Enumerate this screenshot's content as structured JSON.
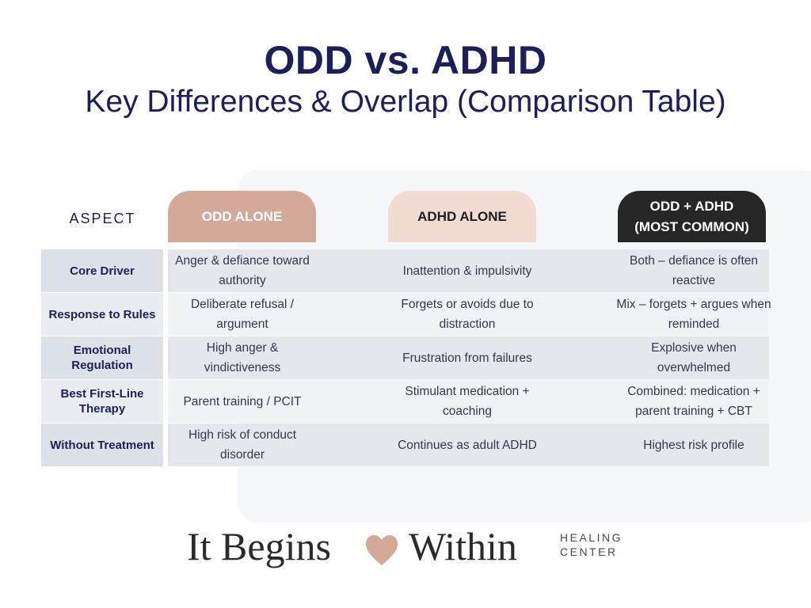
{
  "header": {
    "title": "ODD vs. ADHD",
    "subtitle": "Key Differences & Overlap (Comparison Table)"
  },
  "table": {
    "aspect_label": "ASPECT",
    "columns": [
      "ODD ALONE",
      "ADHD ALONE",
      "ODD + ADHD\n(MOST COMMON)"
    ],
    "rows": [
      {
        "aspect": "Core Driver",
        "odd": "Anger & defiance toward authority",
        "adhd": "Inattention & impulsivity",
        "both": "Both – defiance is often reactive"
      },
      {
        "aspect": "Response to Rules",
        "odd": "Deliberate refusal / argument",
        "adhd": "Forgets or avoids due to distraction",
        "both": "Mix – forgets + argues when reminded"
      },
      {
        "aspect": "Emotional Regulation",
        "odd": "High anger & vindictiveness",
        "adhd": "Frustration from failures",
        "both": "Explosive when overwhelmed"
      },
      {
        "aspect": "Best First-Line Therapy",
        "odd": "Parent training / PCIT",
        "adhd": "Stimulant medication + coaching",
        "both": "Combined: medication + parent training + CBT"
      },
      {
        "aspect": "Without Treatment",
        "odd": "High risk of conduct disorder",
        "adhd": "Continues as adult ADHD",
        "both": "Highest risk profile"
      }
    ]
  },
  "footer": {
    "logo_left": "It Begins",
    "logo_right": "Within",
    "logo_sub": "HEALING\nCENTER",
    "heart_icon": "heart-icon",
    "heart_color": "#d4a99a"
  },
  "colors": {
    "navy": "#1c1f5a",
    "odd_header": "#d4a99a",
    "adhd_header": "#f2dbd0",
    "both_header": "#262626"
  }
}
